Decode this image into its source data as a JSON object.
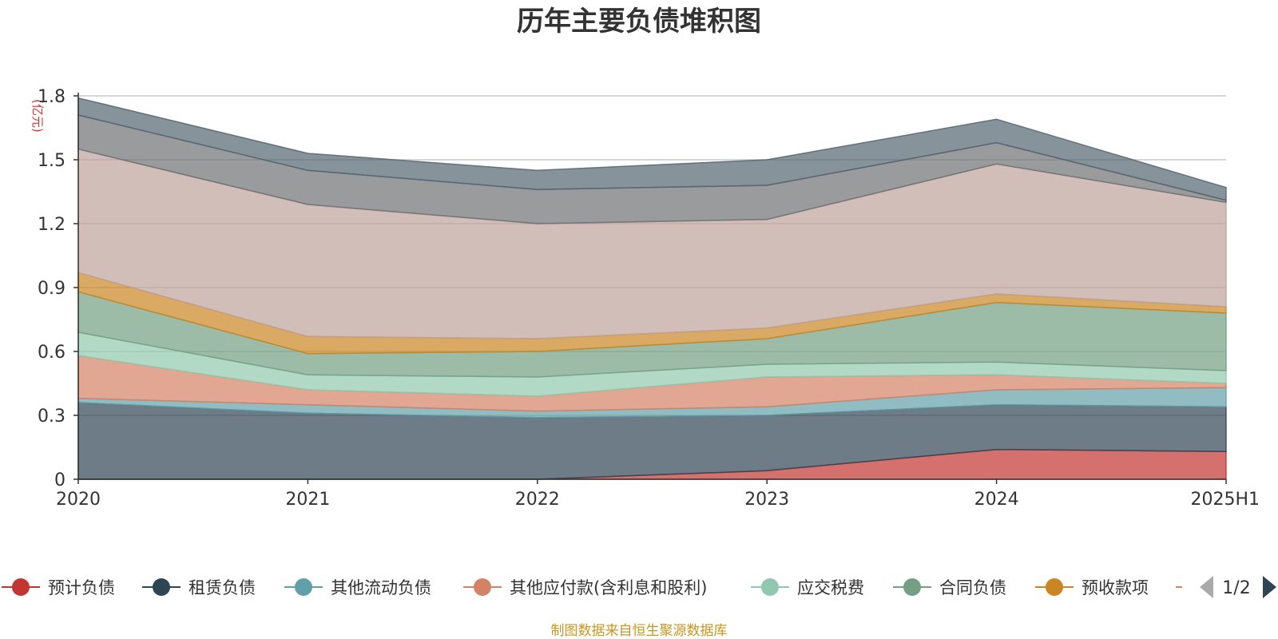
{
  "chart_data": {
    "type": "area",
    "stacked": true,
    "title": "历年主要负债堆积图",
    "unit_label": "(亿元)",
    "categories": [
      "2020",
      "2021",
      "2022",
      "2023",
      "2024",
      "2025H1"
    ],
    "ylim": [
      0,
      1.8
    ],
    "yticks": [
      0,
      0.3,
      0.6,
      0.9,
      1.2,
      1.5,
      1.8
    ],
    "ytick_labels": [
      "0",
      "0.3",
      "0.6",
      "0.9",
      "1.2",
      "1.5",
      "1.8"
    ],
    "grid": true,
    "legend_position": "bottom",
    "series": [
      {
        "name": "预计负债",
        "color": "#c23531",
        "values": [
          0,
          0,
          0,
          0.04,
          0.14,
          0.13
        ]
      },
      {
        "name": "租赁负债",
        "color": "#2f4554",
        "values": [
          0.36,
          0.31,
          0.29,
          0.26,
          0.21,
          0.21
        ]
      },
      {
        "name": "其他流动负债",
        "color": "#61a0a8",
        "values": [
          0.02,
          0.04,
          0.03,
          0.04,
          0.07,
          0.09
        ]
      },
      {
        "name": "其他应付款(含利息和股利)",
        "color": "#d48265",
        "values": [
          0.2,
          0.07,
          0.07,
          0.14,
          0.07,
          0.02
        ]
      },
      {
        "name": "应交税费",
        "color": "#91c7ae",
        "values": [
          0.11,
          0.07,
          0.09,
          0.06,
          0.06,
          0.06
        ]
      },
      {
        "name": "合同负债",
        "color": "#749f83",
        "values": [
          0.19,
          0.1,
          0.12,
          0.12,
          0.28,
          0.27
        ]
      },
      {
        "name": "预收款项",
        "color": "#ca8622",
        "values": [
          0.09,
          0.08,
          0.06,
          0.05,
          0.04,
          0.03
        ]
      },
      {
        "color": "#bda29a",
        "values": [
          0.58,
          0.62,
          0.54,
          0.51,
          0.61,
          0.49
        ]
      },
      {
        "color": "#6e7074",
        "values": [
          0.16,
          0.16,
          0.16,
          0.16,
          0.1,
          0.01
        ]
      },
      {
        "color": "#546570",
        "values": [
          0.08,
          0.08,
          0.09,
          0.12,
          0.11,
          0.06
        ]
      }
    ],
    "legend_visible_count": 7,
    "pager": "1/2",
    "source": "制图数据来自恒生聚源数据库"
  }
}
